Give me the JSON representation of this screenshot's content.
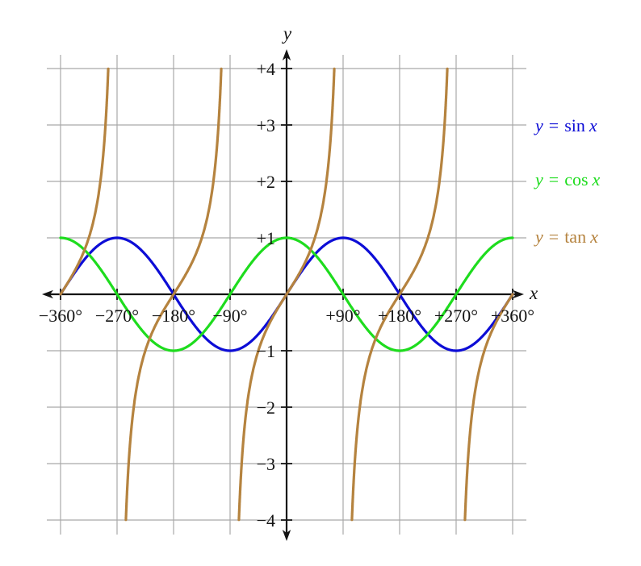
{
  "chart_data": {
    "type": "line",
    "title": "",
    "xlabel": "x",
    "ylabel": "y",
    "x_unit": "degrees",
    "xlim": [
      -360,
      360
    ],
    "ylim": [
      -4,
      4
    ],
    "grid": {
      "shown": true,
      "color": "#a9a9a9",
      "x_step_deg": 90,
      "y_step": 1
    },
    "axis_color": "#141414",
    "x_ticks": [
      {
        "value": -360,
        "label": "−360°"
      },
      {
        "value": -270,
        "label": "−270°"
      },
      {
        "value": -180,
        "label": "−180°"
      },
      {
        "value": -90,
        "label": "−90°"
      },
      {
        "value": 90,
        "label": "+90°"
      },
      {
        "value": 180,
        "label": "+180°"
      },
      {
        "value": 270,
        "label": "+270°"
      },
      {
        "value": 360,
        "label": "+360°"
      }
    ],
    "y_ticks": [
      {
        "value": 4,
        "label": "+4"
      },
      {
        "value": 3,
        "label": "+3"
      },
      {
        "value": 2,
        "label": "+2"
      },
      {
        "value": 1,
        "label": "+1"
      },
      {
        "value": -1,
        "label": "−1"
      },
      {
        "value": -2,
        "label": "−2"
      },
      {
        "value": -3,
        "label": "−3"
      },
      {
        "value": -4,
        "label": "−4"
      }
    ],
    "x_values_deg": [
      -360,
      -270,
      -180,
      -90,
      0,
      90,
      180,
      270,
      360
    ],
    "series": [
      {
        "name": "y = sin x",
        "fn": "sin",
        "color": "#0d0dd6",
        "domain_deg": [
          -360,
          360
        ],
        "values_at_ticks": [
          0,
          1,
          0,
          -1,
          0,
          1,
          0,
          -1,
          0
        ]
      },
      {
        "name": "y = cos x",
        "fn": "cos",
        "color": "#1edc1e",
        "domain_deg": [
          -360,
          360
        ],
        "values_at_ticks": [
          1,
          0,
          -1,
          0,
          1,
          0,
          -1,
          0,
          1
        ]
      },
      {
        "name": "y = tan x",
        "fn": "tan",
        "color": "#b5833f",
        "domain_deg": [
          -360,
          360
        ],
        "clip_y": [
          -4,
          4
        ],
        "asymptotes_deg": [
          -270,
          -90,
          90,
          270
        ],
        "values_at_ticks": [
          0,
          null,
          0,
          null,
          0,
          null,
          0,
          null,
          0
        ]
      }
    ],
    "legend": {
      "position": "right",
      "items": [
        {
          "y": "y",
          "eq": "=",
          "fn": "sin",
          "x": "x",
          "color": "#0d0dd6"
        },
        {
          "y": "y",
          "eq": "=",
          "fn": "cos",
          "x": "x",
          "color": "#1edc1e"
        },
        {
          "y": "y",
          "eq": "=",
          "fn": "tan",
          "x": "x",
          "color": "#b5833f"
        }
      ]
    }
  }
}
